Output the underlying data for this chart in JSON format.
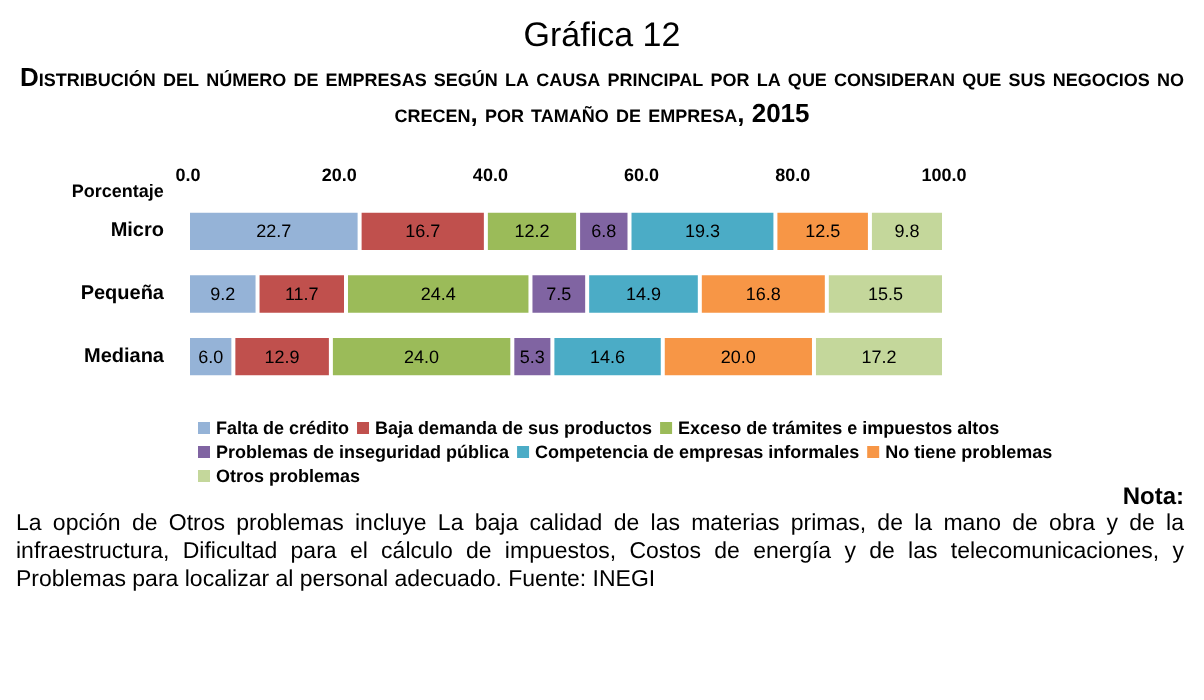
{
  "chart_data": {
    "type": "bar",
    "orientation": "horizontal",
    "stacked": true,
    "title": "Gráfica 12",
    "subtitle": "Distribución del número de empresas según la causa principal por la que consideran que sus negocios no crecen, por tamaño de empresa, 2015",
    "xlabel": "Porcentaje",
    "categories": [
      "Micro",
      "Pequeña",
      "Mediana"
    ],
    "series": [
      {
        "name": "Falta de crédito",
        "color": "#95b3d7",
        "values": [
          22.7,
          9.2,
          6.0
        ],
        "value_labels": [
          "22.7",
          "9.2",
          "6.0"
        ]
      },
      {
        "name": "Baja demanda de sus productos",
        "color": "#c0504d",
        "values": [
          16.7,
          11.7,
          12.9
        ],
        "value_labels": [
          "16.7",
          "11.7",
          "12.9"
        ]
      },
      {
        "name": "Exceso de trámites e impuestos altos",
        "color": "#9bbb59",
        "values": [
          12.2,
          24.4,
          24.0
        ],
        "value_labels": [
          "12.2",
          "24.4",
          "24.0"
        ]
      },
      {
        "name": "Problemas de inseguridad pública",
        "color": "#8064a2",
        "values": [
          6.8,
          7.5,
          5.3
        ],
        "value_labels": [
          "6.8",
          "7.5",
          "5.3"
        ]
      },
      {
        "name": "Competencia de empresas informales",
        "color": "#4bacc6",
        "values": [
          19.3,
          14.9,
          14.6
        ],
        "value_labels": [
          "19.3",
          "14.9",
          "14.6"
        ]
      },
      {
        "name": "No tiene problemas",
        "color": "#f79646",
        "values": [
          12.5,
          16.8,
          20.0
        ],
        "value_labels": [
          "12.5",
          "16.8",
          "20.0"
        ]
      },
      {
        "name": "Otros problemas",
        "color": "#c4d79b",
        "values": [
          9.8,
          15.5,
          17.2
        ],
        "value_labels": [
          "9.8",
          "15.5",
          "17.2"
        ]
      }
    ],
    "xlim": [
      0,
      100
    ],
    "xticks": [
      {
        "value": 0,
        "label": "0.0"
      },
      {
        "value": 20,
        "label": "20.0"
      },
      {
        "value": 40,
        "label": "40.0"
      },
      {
        "value": 60,
        "label": "60.0"
      },
      {
        "value": 80,
        "label": "80.0"
      },
      {
        "value": 100,
        "label": "100.0"
      }
    ],
    "grid": false,
    "legend": "bottom",
    "annotations": [
      "Nota:",
      "La opción de Otros problemas incluye La baja calidad de las materias primas, de la mano de obra y de la infraestructura, Dificultad para el cálculo de impuestos, Costos de energía y de las telecomunicaciones, y Problemas para localizar al personal adecuado. Fuente: INEGI"
    ]
  }
}
